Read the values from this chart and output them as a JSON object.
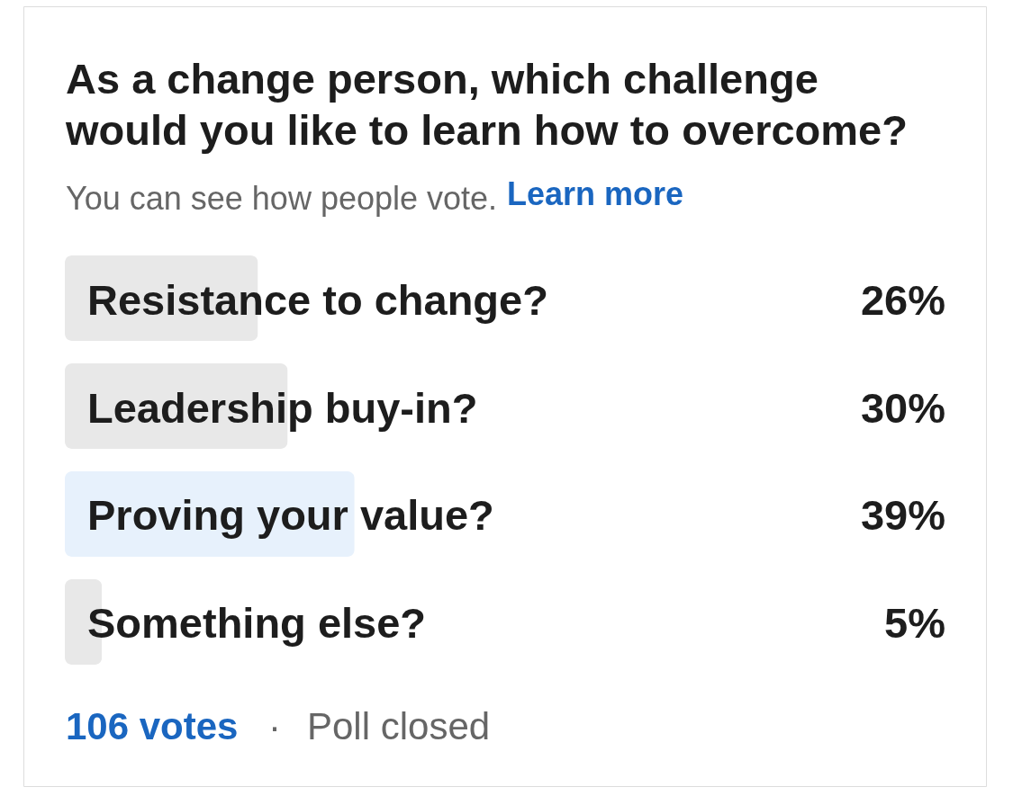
{
  "chart_data": {
    "type": "bar",
    "orientation": "horizontal",
    "title": "As a change person, which challenge would you like to learn how to overcome?",
    "subtitle": "You can see how people vote.",
    "categories": [
      "Resistance to change?",
      "Leadership buy-in?",
      "Proving your value?",
      "Something else?"
    ],
    "values": [
      26,
      30,
      39,
      5
    ],
    "colors": [
      "#e8e8e8",
      "#e8e8e8",
      "#e7f1fc",
      "#e8e8e8"
    ],
    "value_labels": [
      "26%",
      "30%",
      "39%",
      "5%"
    ],
    "annotations": [
      "Learn more",
      "106 votes",
      "·",
      "Poll closed"
    ]
  }
}
